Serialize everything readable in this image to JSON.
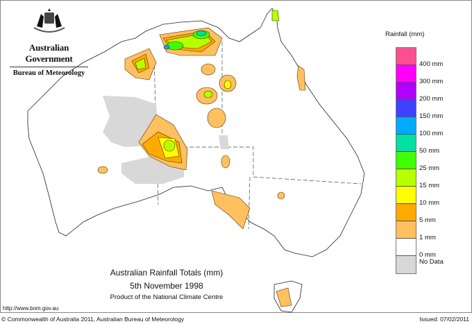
{
  "header": {
    "agency": "Australian Government",
    "bureau": "Bureau of Meteorology"
  },
  "legend": {
    "title": "Rainfall (mm)",
    "bands": [
      {
        "color": "#ff4f8f",
        "label": ""
      },
      {
        "color": "#ff00ff",
        "label": "400 mm"
      },
      {
        "color": "#b000ff",
        "label": "300 mm"
      },
      {
        "color": "#4040ff",
        "label": "200 mm"
      },
      {
        "color": "#00aaff",
        "label": "150 mm"
      },
      {
        "color": "#00e0a0",
        "label": "100 mm"
      },
      {
        "color": "#40ff00",
        "label": "50 mm"
      },
      {
        "color": "#b8ff00",
        "label": "25 mm"
      },
      {
        "color": "#ffff00",
        "label": "15 mm"
      },
      {
        "color": "#ffaa00",
        "label": "10 mm"
      },
      {
        "color": "#ffc060",
        "label": "5 mm"
      },
      {
        "color": "#ffffff",
        "label": "1 mm"
      },
      {
        "color": "#d8d8d8",
        "label": "0 mm"
      }
    ],
    "no_data_label": "No Data"
  },
  "map": {
    "title": "Australian Rainfall Totals (mm)",
    "date": "5th November 1998",
    "product": "Product of the National Climate Centre"
  },
  "footer": {
    "url": "http://www.bom.gov.au",
    "copyright": "© Commonwealth of Australia 2011, Australian Bureau of Meteorology",
    "issued": "Issued: 07/02/2011"
  }
}
